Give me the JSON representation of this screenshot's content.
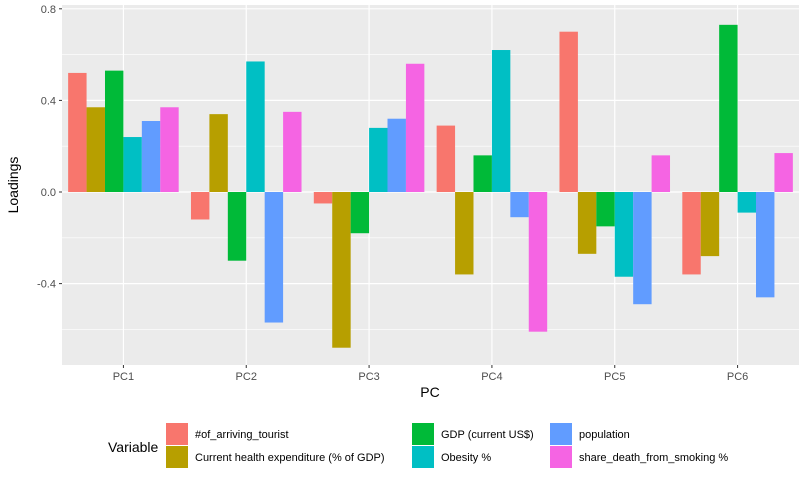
{
  "chart_data": {
    "type": "bar",
    "title": "",
    "xlabel": "PC",
    "ylabel": "Loadings",
    "categories": [
      "PC1",
      "PC2",
      "PC3",
      "PC4",
      "PC5",
      "PC6"
    ],
    "yticks": [
      -0.4,
      0.0,
      0.4,
      0.8
    ],
    "ytick_labels": [
      "-0.4",
      "0.0",
      "0.4",
      "0.8"
    ],
    "ylim": [
      -0.72,
      0.8
    ],
    "grid": true,
    "legend": {
      "title": "Variable",
      "position": "bottom"
    },
    "series": [
      {
        "name": "#of_arriving_tourist",
        "color": "#F8766D",
        "values": [
          0.52,
          -0.12,
          -0.05,
          0.29,
          0.7,
          -0.36
        ]
      },
      {
        "name": "Current health expenditure (% of GDP)",
        "color": "#B79F00",
        "values": [
          0.37,
          0.34,
          -0.68,
          -0.36,
          -0.27,
          -0.28
        ]
      },
      {
        "name": "GDP (current US$)",
        "color": "#00BA38",
        "values": [
          0.53,
          -0.3,
          -0.18,
          0.16,
          -0.15,
          0.73
        ]
      },
      {
        "name": "Obesity %",
        "color": "#00BFC4",
        "values": [
          0.24,
          0.57,
          0.28,
          0.62,
          -0.37,
          -0.09
        ]
      },
      {
        "name": "population",
        "color": "#619CFF",
        "values": [
          0.31,
          -0.57,
          0.32,
          -0.11,
          -0.49,
          -0.46
        ]
      },
      {
        "name": "share_death_from_smoking %",
        "color": "#F564E3",
        "values": [
          0.37,
          0.35,
          0.56,
          -0.61,
          0.16,
          0.17
        ]
      }
    ]
  }
}
